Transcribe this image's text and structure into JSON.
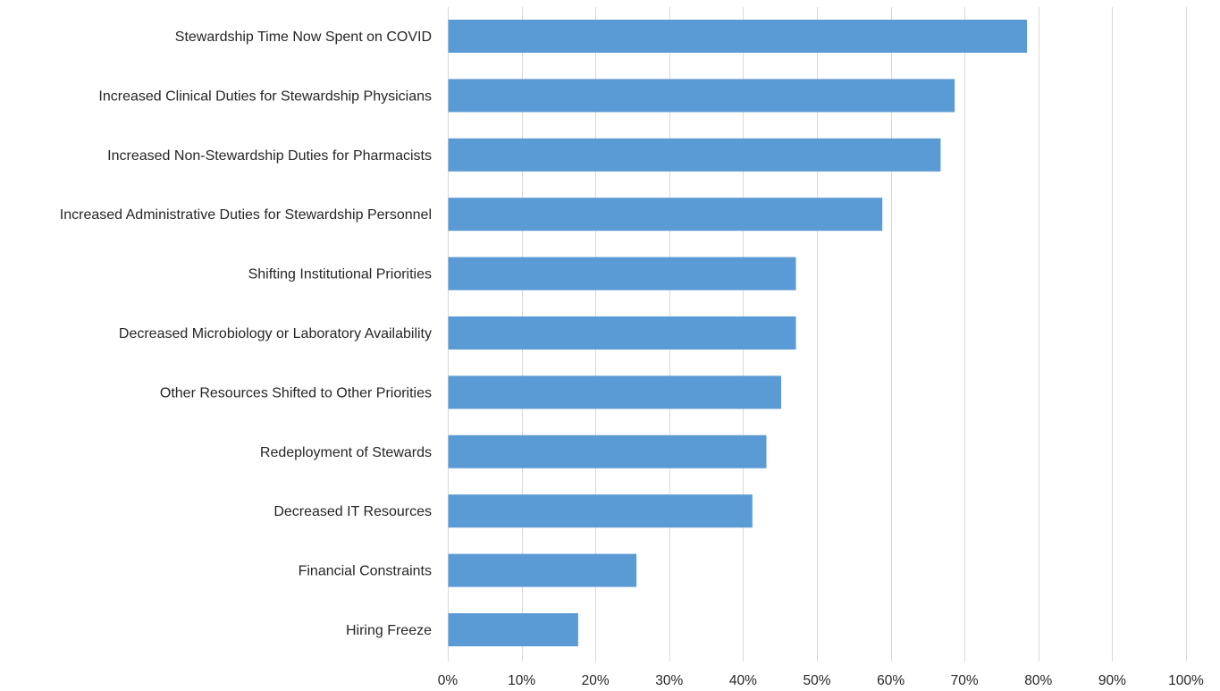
{
  "chart_data": {
    "type": "bar",
    "orientation": "horizontal",
    "title": "",
    "xlabel": "",
    "ylabel": "",
    "xlim": [
      0,
      100
    ],
    "x_tick_values": [
      0,
      10,
      20,
      30,
      40,
      50,
      60,
      70,
      80,
      90,
      100
    ],
    "x_tick_labels": [
      "0%",
      "10%",
      "20%",
      "30%",
      "40%",
      "50%",
      "60%",
      "70%",
      "80%",
      "90%",
      "100%"
    ],
    "grid": "vertical",
    "legend": "none",
    "bar_color": "#5b9bd5",
    "categories": [
      "Stewardship Time Now Spent on COVID",
      "Increased Clinical Duties for Stewardship Physicians",
      "Increased Non-Stewardship Duties for Pharmacists",
      "Increased Administrative Duties for Stewardship Personnel",
      "Shifting Institutional Priorities",
      "Decreased Microbiology or Laboratory Availability",
      "Other Resources Shifted to Other Priorities",
      "Redeployment of Stewards",
      "Decreased IT Resources",
      "Financial Constraints",
      "Hiring Freeze"
    ],
    "values": [
      78.4,
      68.6,
      66.7,
      58.8,
      47.1,
      47.1,
      45.1,
      43.1,
      41.2,
      25.5,
      17.6
    ]
  }
}
